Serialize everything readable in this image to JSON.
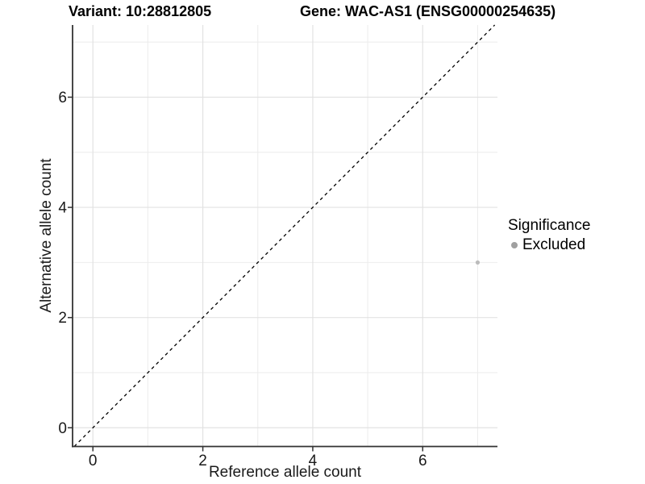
{
  "chart_data": {
    "type": "scatter",
    "title_variant": "Variant: 10:28812805",
    "title_gene": "Gene: WAC-AS1 (ENSG00000254635)",
    "xlabel": "Reference allele count",
    "ylabel": "Alternative allele count",
    "xlim": [
      -0.37,
      7.36
    ],
    "ylim": [
      -0.34,
      7.31
    ],
    "x_breaks": [
      0,
      2,
      4,
      6
    ],
    "y_breaks": [
      0,
      2,
      4,
      6
    ],
    "x_minor_breaks": [
      1,
      3,
      5,
      7
    ],
    "y_minor_breaks": [
      1,
      3,
      5,
      7
    ],
    "grid": "major+minor",
    "legend_position": "right",
    "identity_line": {
      "slope": 1,
      "intercept": 0,
      "style": "dashed",
      "color": "#000000"
    },
    "series": [
      {
        "name": "Excluded",
        "color": "#bcbcbc",
        "points": [
          {
            "x": 7,
            "y": 3
          }
        ]
      }
    ],
    "legend": {
      "title": "Significance",
      "items": [
        {
          "label": "Excluded",
          "swatch_color": "#a0a0a0"
        }
      ]
    }
  },
  "colors": {
    "background": "#ffffff",
    "grid_major": "#e2e2e2",
    "grid_minor": "#ededed",
    "axis_line": "#333333",
    "tick_text": "#1a1a1a",
    "title_text": "#000000"
  }
}
